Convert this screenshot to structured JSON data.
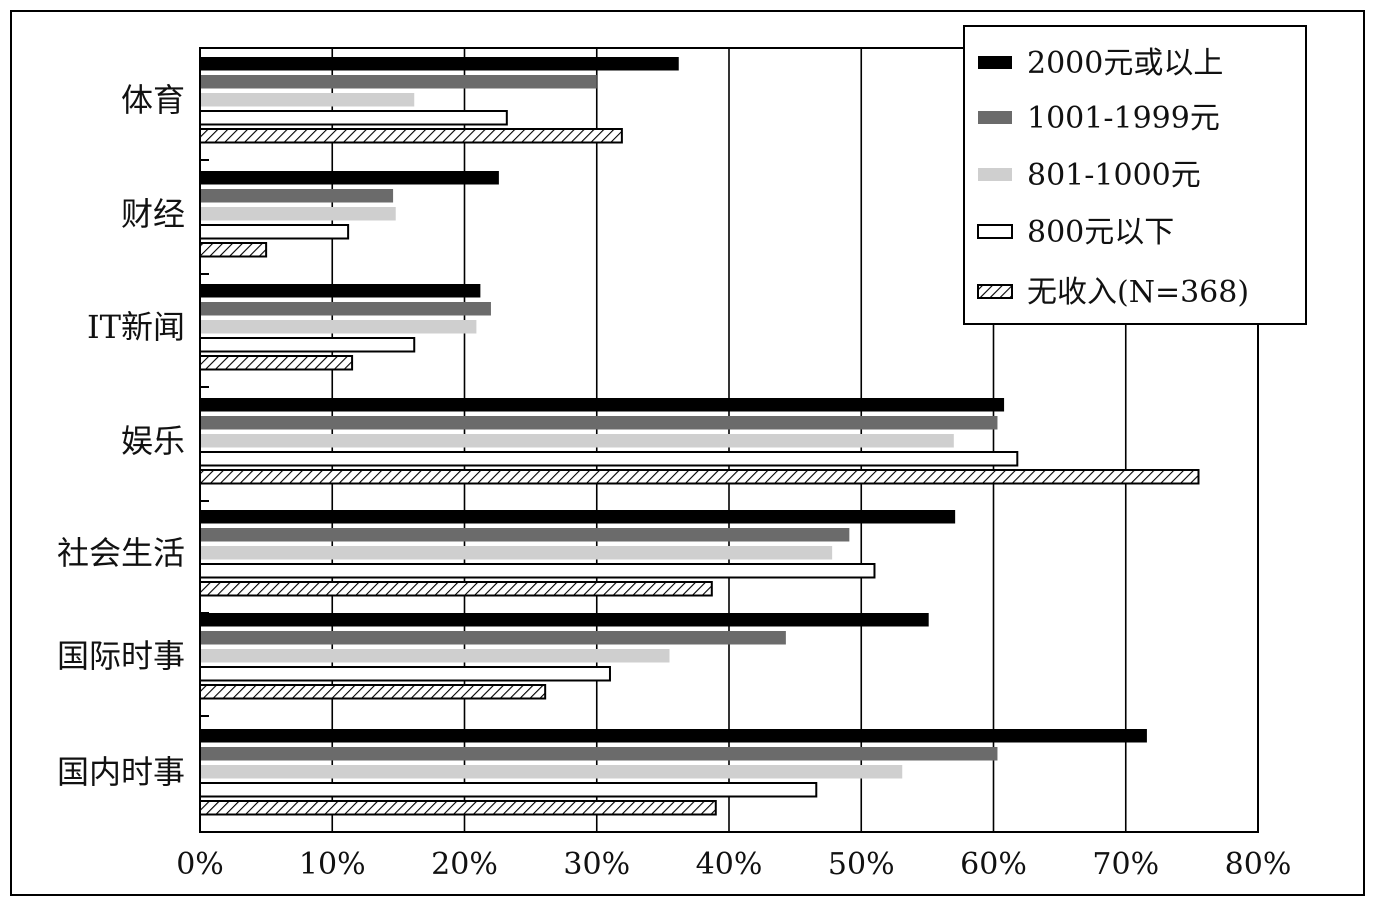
{
  "chart_data": {
    "type": "bar",
    "orientation": "horizontal",
    "categories": [
      "体育",
      "财经",
      "IT新闻",
      "娱乐",
      "社会生活",
      "国际时事",
      "国内时事"
    ],
    "x_ticks": [
      "0%",
      "10%",
      "20%",
      "30%",
      "40%",
      "50%",
      "60%",
      "70%",
      "80%"
    ],
    "xlim": [
      0,
      80
    ],
    "grid": "vertical",
    "legend_position": "top-right",
    "series": [
      {
        "name": "2000元或以上",
        "fill": "#000000",
        "pattern": "solid",
        "values": [
          36.2,
          22.6,
          21.2,
          60.8,
          57.1,
          55.1,
          71.6
        ]
      },
      {
        "name": "1001-1999元",
        "fill": "#6b6b6b",
        "pattern": "solid",
        "values": [
          30.0,
          14.6,
          22.0,
          60.3,
          49.1,
          44.3,
          60.3
        ]
      },
      {
        "name": "801-1000元",
        "fill": "#cfcfcf",
        "pattern": "solid",
        "values": [
          16.2,
          14.8,
          20.9,
          57.0,
          47.8,
          35.5,
          53.1
        ]
      },
      {
        "name": "800元以下",
        "fill": "#ffffff",
        "pattern": "outline",
        "values": [
          23.2,
          11.2,
          16.2,
          61.8,
          51.0,
          31.0,
          46.6
        ]
      },
      {
        "name": "无收入(N=368)",
        "fill": "#ffffff",
        "pattern": "hatch",
        "values": [
          31.9,
          5.0,
          11.5,
          75.5,
          38.7,
          26.1,
          39.0
        ]
      }
    ]
  }
}
